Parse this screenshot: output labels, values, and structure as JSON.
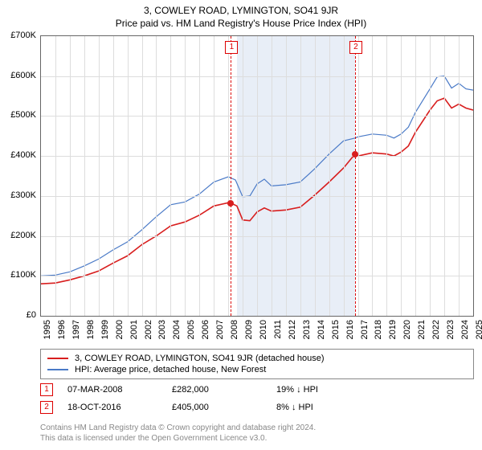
{
  "title": "3, COWLEY ROAD, LYMINGTON, SO41 9JR",
  "subtitle": "Price paid vs. HM Land Registry's House Price Index (HPI)",
  "chart": {
    "type": "line",
    "y_axis": {
      "min": 0,
      "max": 700000,
      "step": 100000,
      "labels": [
        "£0",
        "£100K",
        "£200K",
        "£300K",
        "£400K",
        "£500K",
        "£600K",
        "£700K"
      ],
      "label_fontsize": 11
    },
    "x_axis": {
      "min": 1995,
      "max": 2025,
      "step": 1,
      "labels": [
        "1995",
        "1996",
        "1997",
        "1998",
        "1999",
        "2000",
        "2001",
        "2002",
        "2003",
        "2004",
        "2005",
        "2006",
        "2007",
        "2008",
        "2009",
        "2010",
        "2011",
        "2012",
        "2013",
        "2014",
        "2015",
        "2016",
        "2017",
        "2018",
        "2019",
        "2020",
        "2021",
        "2022",
        "2023",
        "2024",
        "2025"
      ],
      "label_fontsize": 11,
      "rotation": -90
    },
    "background_color": "#ffffff",
    "grid_color": "#dddddd",
    "border_color": "#666666",
    "shaded_region": {
      "from": 2008.6,
      "to": 2016.8,
      "color": "#e8eef7"
    },
    "series": [
      {
        "name": "price_paid",
        "label": "3, COWLEY ROAD, LYMINGTON, SO41 9JR (detached house)",
        "color": "#d81e1e",
        "line_width": 1.6,
        "data": [
          [
            1995.0,
            80000
          ],
          [
            1996.0,
            82000
          ],
          [
            1997.0,
            90000
          ],
          [
            1998.0,
            100000
          ],
          [
            1999.0,
            112000
          ],
          [
            2000.0,
            132000
          ],
          [
            2001.0,
            150000
          ],
          [
            2002.0,
            178000
          ],
          [
            2003.0,
            200000
          ],
          [
            2004.0,
            225000
          ],
          [
            2005.0,
            235000
          ],
          [
            2006.0,
            252000
          ],
          [
            2007.0,
            275000
          ],
          [
            2008.0,
            283000
          ],
          [
            2008.2,
            282000
          ],
          [
            2008.6,
            275000
          ],
          [
            2009.0,
            240000
          ],
          [
            2009.5,
            238000
          ],
          [
            2010.0,
            260000
          ],
          [
            2010.5,
            270000
          ],
          [
            2011.0,
            262000
          ],
          [
            2012.0,
            265000
          ],
          [
            2013.0,
            272000
          ],
          [
            2014.0,
            302000
          ],
          [
            2015.0,
            335000
          ],
          [
            2016.0,
            370000
          ],
          [
            2016.8,
            405000
          ],
          [
            2017.0,
            400000
          ],
          [
            2018.0,
            408000
          ],
          [
            2019.0,
            405000
          ],
          [
            2019.5,
            400000
          ],
          [
            2020.0,
            410000
          ],
          [
            2020.5,
            425000
          ],
          [
            2021.0,
            460000
          ],
          [
            2022.0,
            515000
          ],
          [
            2022.5,
            538000
          ],
          [
            2023.0,
            545000
          ],
          [
            2023.5,
            520000
          ],
          [
            2024.0,
            530000
          ],
          [
            2024.5,
            520000
          ],
          [
            2025.0,
            515000
          ]
        ]
      },
      {
        "name": "hpi",
        "label": "HPI: Average price, detached house, New Forest",
        "color": "#4a7ac7",
        "line_width": 1.2,
        "data": [
          [
            1995.0,
            100000
          ],
          [
            1996.0,
            102000
          ],
          [
            1997.0,
            110000
          ],
          [
            1998.0,
            125000
          ],
          [
            1999.0,
            142000
          ],
          [
            2000.0,
            165000
          ],
          [
            2001.0,
            185000
          ],
          [
            2002.0,
            215000
          ],
          [
            2003.0,
            248000
          ],
          [
            2004.0,
            278000
          ],
          [
            2005.0,
            285000
          ],
          [
            2006.0,
            305000
          ],
          [
            2007.0,
            335000
          ],
          [
            2008.0,
            348000
          ],
          [
            2008.5,
            340000
          ],
          [
            2009.0,
            298000
          ],
          [
            2009.5,
            300000
          ],
          [
            2010.0,
            330000
          ],
          [
            2010.5,
            342000
          ],
          [
            2011.0,
            325000
          ],
          [
            2012.0,
            328000
          ],
          [
            2013.0,
            335000
          ],
          [
            2014.0,
            368000
          ],
          [
            2015.0,
            405000
          ],
          [
            2016.0,
            438000
          ],
          [
            2016.8,
            445000
          ],
          [
            2017.0,
            448000
          ],
          [
            2018.0,
            455000
          ],
          [
            2019.0,
            452000
          ],
          [
            2019.5,
            445000
          ],
          [
            2020.0,
            455000
          ],
          [
            2020.5,
            472000
          ],
          [
            2021.0,
            510000
          ],
          [
            2022.0,
            568000
          ],
          [
            2022.5,
            598000
          ],
          [
            2023.0,
            600000
          ],
          [
            2023.5,
            570000
          ],
          [
            2024.0,
            582000
          ],
          [
            2024.5,
            568000
          ],
          [
            2025.0,
            565000
          ]
        ]
      }
    ],
    "sale_markers": [
      {
        "id": "1",
        "x": 2008.18,
        "price": 282000,
        "color": "#d81e1e"
      },
      {
        "id": "2",
        "x": 2016.8,
        "price": 405000,
        "color": "#d81e1e"
      }
    ]
  },
  "legend": {
    "items": [
      {
        "color": "#d81e1e",
        "label": "3, COWLEY ROAD, LYMINGTON, SO41 9JR (detached house)"
      },
      {
        "color": "#4a7ac7",
        "label": "HPI: Average price, detached house, New Forest"
      }
    ]
  },
  "sales_detail": [
    {
      "id": "1",
      "date": "07-MAR-2008",
      "price": "£282,000",
      "pct": "19%",
      "arrow": "↓",
      "vs": "HPI"
    },
    {
      "id": "2",
      "date": "18-OCT-2016",
      "price": "£405,000",
      "pct": "8%",
      "arrow": "↓",
      "vs": "HPI"
    }
  ],
  "footer": {
    "line1": "Contains HM Land Registry data © Crown copyright and database right 2024.",
    "line2": "This data is licensed under the Open Government Licence v3.0."
  }
}
